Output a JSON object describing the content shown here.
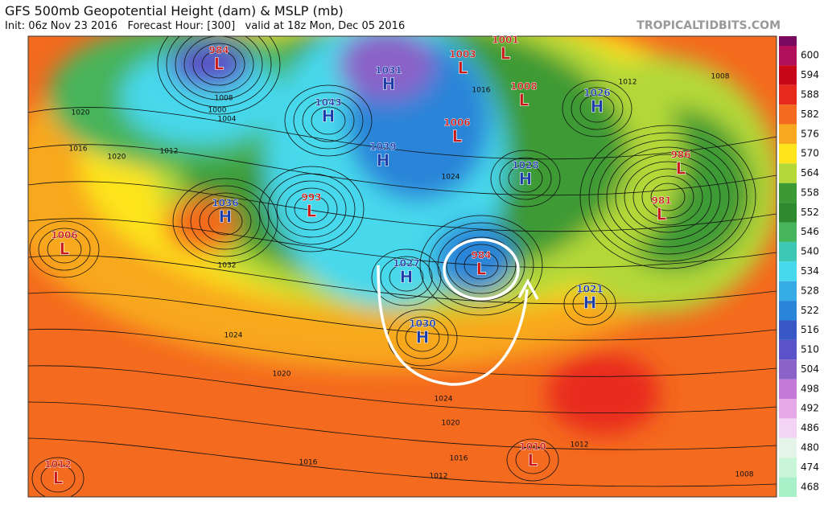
{
  "header": {
    "title": "GFS 500mb Geopotential Height (dam) & MSLP (mb)",
    "subtitle": "Init: 06z Nov 23 2016   Forecast Hour: [300]   valid at 18z Mon, Dec 05 2016",
    "brand": "TROPICALTIDBITS.COM"
  },
  "colorbar": [
    {
      "label": "600",
      "color": "#b0105a"
    },
    {
      "label": "594",
      "color": "#c80818"
    },
    {
      "label": "588",
      "color": "#e82a1c"
    },
    {
      "label": "582",
      "color": "#f46a1e"
    },
    {
      "label": "576",
      "color": "#f8a81e"
    },
    {
      "label": "570",
      "color": "#fde41c"
    },
    {
      "label": "564",
      "color": "#b4d838"
    },
    {
      "label": "558",
      "color": "#3c9a34"
    },
    {
      "label": "552",
      "color": "#2e8a2e"
    },
    {
      "label": "546",
      "color": "#46b45a"
    },
    {
      "label": "540",
      "color": "#3cc8b4"
    },
    {
      "label": "534",
      "color": "#46d8ec"
    },
    {
      "label": "528",
      "color": "#36ace6"
    },
    {
      "label": "522",
      "color": "#2a84d8"
    },
    {
      "label": "516",
      "color": "#3858c8"
    },
    {
      "label": "510",
      "color": "#5a52c8"
    },
    {
      "label": "504",
      "color": "#8a62c8"
    },
    {
      "label": "498",
      "color": "#c478d8"
    },
    {
      "label": "492",
      "color": "#e6a8e6"
    },
    {
      "label": "486",
      "color": "#f4d4f4"
    },
    {
      "label": "480",
      "color": "#e4f4e8"
    },
    {
      "label": "474",
      "color": "#c8f4d8"
    },
    {
      "label": "468",
      "color": "#a8f0c8"
    }
  ],
  "centers": [
    {
      "kind": "L",
      "pressure": "984"
    },
    {
      "kind": "H",
      "pressure": "1043"
    },
    {
      "kind": "H",
      "pressure": "1031"
    },
    {
      "kind": "L",
      "pressure": "1003"
    },
    {
      "kind": "L",
      "pressure": "1001"
    },
    {
      "kind": "L",
      "pressure": "1008"
    },
    {
      "kind": "H",
      "pressure": "1026"
    },
    {
      "kind": "L",
      "pressure": "1006"
    },
    {
      "kind": "H",
      "pressure": "1039"
    },
    {
      "kind": "H",
      "pressure": "1028"
    },
    {
      "kind": "L",
      "pressure": "986"
    },
    {
      "kind": "L",
      "pressure": "981"
    },
    {
      "kind": "H",
      "pressure": "1036"
    },
    {
      "kind": "L",
      "pressure": "993"
    },
    {
      "kind": "L",
      "pressure": "1006"
    },
    {
      "kind": "L",
      "pressure": "984"
    },
    {
      "kind": "H",
      "pressure": "1027"
    },
    {
      "kind": "H",
      "pressure": "1021"
    },
    {
      "kind": "H",
      "pressure": "1030"
    },
    {
      "kind": "L",
      "pressure": "1010"
    },
    {
      "kind": "L",
      "pressure": "1012"
    }
  ],
  "isobar_labels": [
    "1020",
    "1016",
    "1012",
    "1020",
    "1004",
    "1008",
    "1000",
    "1032",
    "1024",
    "1020",
    "1016",
    "1012",
    "1024",
    "1020",
    "1016",
    "1012",
    "1008",
    "1024",
    "1012",
    "1016",
    "1008"
  ]
}
